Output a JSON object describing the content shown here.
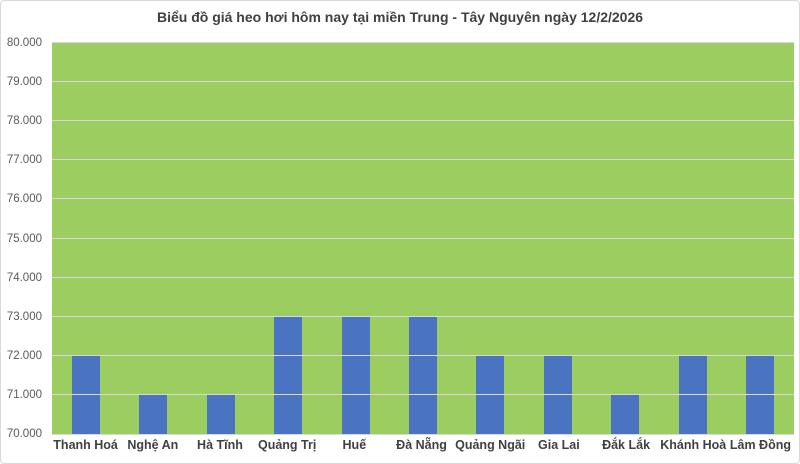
{
  "chart": {
    "title": "Biểu đồ giá heo hơi hôm nay tại miền Trung - Tây Nguyên ngày 12/2/2026"
  },
  "chart_data": {
    "type": "bar",
    "title": "Biểu đồ giá heo hơi hôm nay tại miền Trung - Tây Nguyên ngày 12/2/2026",
    "categories": [
      "Thanh Hoá",
      "Nghệ An",
      "Hà Tĩnh",
      "Quảng Trị",
      "Huế",
      "Đà Nẵng",
      "Quảng Ngãi",
      "Gia Lai",
      "Đắk Lắk",
      "Khánh Hoà",
      "Lâm Đồng"
    ],
    "values": [
      72000,
      71000,
      71000,
      73000,
      73000,
      73000,
      72000,
      72000,
      71000,
      72000,
      72000
    ],
    "xlabel": "",
    "ylabel": "",
    "ylim": [
      70000,
      80000
    ],
    "y_tick_step": 1000,
    "y_tick_labels": [
      "70.000",
      "71.000",
      "72.000",
      "73.000",
      "74.000",
      "75.000",
      "76.000",
      "77.000",
      "78.000",
      "79.000",
      "80.000"
    ],
    "grid": true,
    "legend": false,
    "colors": {
      "bar": "#4a73c1",
      "plot_background": "#9ccd60",
      "gridline": "#d9d9d9",
      "title_text": "#404040",
      "axis_text": "#595959",
      "category_text": "#404040",
      "chart_border": "#d9d9d9"
    }
  }
}
